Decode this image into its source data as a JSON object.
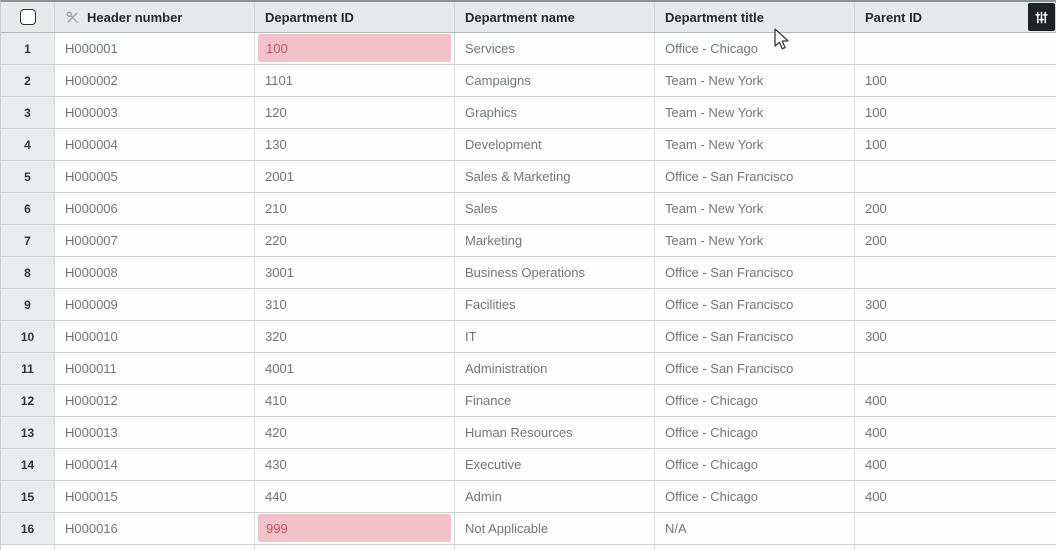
{
  "table": {
    "select_all_checked": false,
    "columns": [
      {
        "label": "Header number",
        "icon": "key-slash-icon"
      },
      {
        "label": "Department ID"
      },
      {
        "label": "Department name"
      },
      {
        "label": "Department title"
      },
      {
        "label": "Parent ID"
      }
    ],
    "rows": [
      {
        "num": "1",
        "header_number": "H000001",
        "department_id": "100",
        "department_id_invalid": true,
        "department_name": "Services",
        "department_title": "Office - Chicago",
        "parent_id": ""
      },
      {
        "num": "2",
        "header_number": "H000002",
        "department_id": "1101",
        "department_id_invalid": false,
        "department_name": "Campaigns",
        "department_title": "Team - New York",
        "parent_id": "100"
      },
      {
        "num": "3",
        "header_number": "H000003",
        "department_id": "120",
        "department_id_invalid": false,
        "department_name": "Graphics",
        "department_title": "Team - New York",
        "parent_id": "100"
      },
      {
        "num": "4",
        "header_number": "H000004",
        "department_id": "130",
        "department_id_invalid": false,
        "department_name": "Development",
        "department_title": "Team - New York",
        "parent_id": "100"
      },
      {
        "num": "5",
        "header_number": "H000005",
        "department_id": "2001",
        "department_id_invalid": false,
        "department_name": "Sales & Marketing",
        "department_title": "Office - San Francisco",
        "parent_id": ""
      },
      {
        "num": "6",
        "header_number": "H000006",
        "department_id": "210",
        "department_id_invalid": false,
        "department_name": "Sales",
        "department_title": "Team - New York",
        "parent_id": "200"
      },
      {
        "num": "7",
        "header_number": "H000007",
        "department_id": "220",
        "department_id_invalid": false,
        "department_name": "Marketing",
        "department_title": "Team - New York",
        "parent_id": "200"
      },
      {
        "num": "8",
        "header_number": "H000008",
        "department_id": "3001",
        "department_id_invalid": false,
        "department_name": "Business Operations",
        "department_title": "Office - San Francisco",
        "parent_id": ""
      },
      {
        "num": "9",
        "header_number": "H000009",
        "department_id": "310",
        "department_id_invalid": false,
        "department_name": "Facilities",
        "department_title": "Office - San Francisco",
        "parent_id": "300"
      },
      {
        "num": "10",
        "header_number": "H000010",
        "department_id": "320",
        "department_id_invalid": false,
        "department_name": "IT",
        "department_title": "Office - San Francisco",
        "parent_id": "300"
      },
      {
        "num": "11",
        "header_number": "H000011",
        "department_id": "4001",
        "department_id_invalid": false,
        "department_name": "Administration",
        "department_title": "Office - San Francisco",
        "parent_id": ""
      },
      {
        "num": "12",
        "header_number": "H000012",
        "department_id": "410",
        "department_id_invalid": false,
        "department_name": "Finance",
        "department_title": "Office - Chicago",
        "parent_id": "400"
      },
      {
        "num": "13",
        "header_number": "H000013",
        "department_id": "420",
        "department_id_invalid": false,
        "department_name": "Human Resources",
        "department_title": "Office - Chicago",
        "parent_id": "400"
      },
      {
        "num": "14",
        "header_number": "H000014",
        "department_id": "430",
        "department_id_invalid": false,
        "department_name": "Executive",
        "department_title": "Office - Chicago",
        "parent_id": "400"
      },
      {
        "num": "15",
        "header_number": "H000015",
        "department_id": "440",
        "department_id_invalid": false,
        "department_name": "Admin",
        "department_title": "Office - Chicago",
        "parent_id": "400"
      },
      {
        "num": "16",
        "header_number": "H000016",
        "department_id": "999",
        "department_id_invalid": true,
        "department_name": "Not Applicable",
        "department_title": "N/A",
        "parent_id": ""
      }
    ]
  },
  "toolbar": {
    "settings_icon": "column-settings-sliders-icon"
  },
  "colors": {
    "invalid_cell_bg": "#f2c2ca",
    "invalid_cell_text": "#c84f60",
    "header_bg": "#e7eaea",
    "settings_button_bg": "#1d2222"
  }
}
